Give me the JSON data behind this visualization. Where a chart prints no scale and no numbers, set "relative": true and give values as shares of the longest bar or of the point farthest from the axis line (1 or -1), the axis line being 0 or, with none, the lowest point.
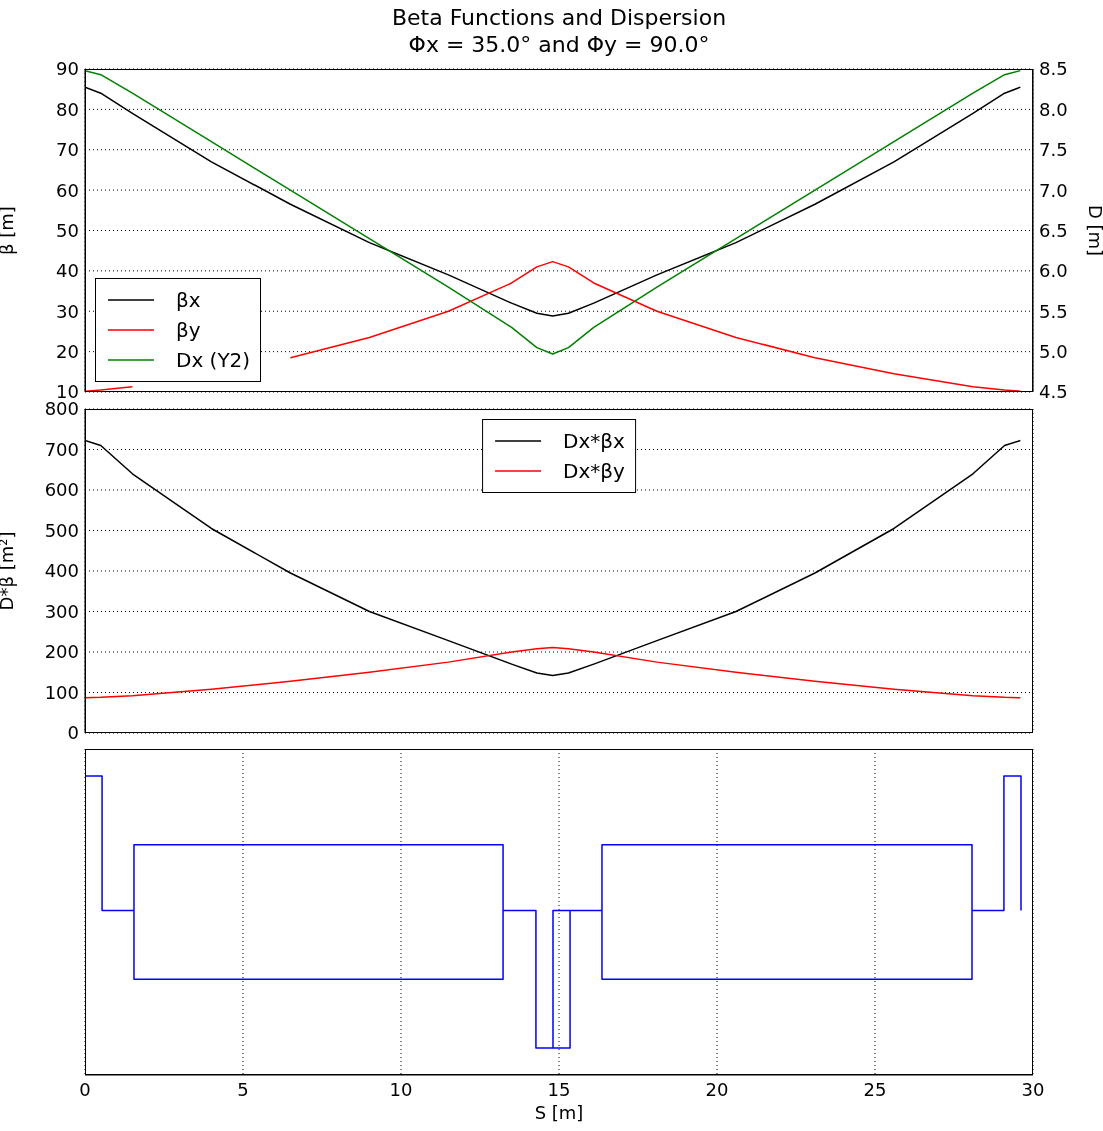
{
  "chart_data": [
    {
      "type": "line",
      "title": "Beta Functions and Dispersion",
      "subtitle": "Φx = 35.0° and Φy = 90.0°",
      "ylabel": "β [m]",
      "y2label": "D [m]",
      "x": [
        0,
        0.5,
        1.5,
        4,
        6.5,
        9,
        11.5,
        13.5,
        14.3,
        14.8,
        15.3,
        16.1,
        18.1,
        20.6,
        23.1,
        25.6,
        28.1,
        29.1,
        29.6
      ],
      "series": [
        {
          "name": "βx",
          "color": "#000000",
          "values": [
            85.5,
            84,
            79,
            67,
            56.5,
            47,
            39,
            32,
            29.5,
            28.8,
            29.5,
            32,
            39,
            47,
            56.5,
            67,
            79,
            84,
            85.5
          ]
        },
        {
          "name": "βy",
          "color": "#ff0000",
          "values": [
            10.2,
            10.5,
            11.3,
            null,
            18.5,
            23.5,
            30,
            37,
            41,
            42.3,
            41,
            37,
            30,
            23.5,
            18.5,
            14.5,
            11.3,
            10.5,
            10.2
          ]
        },
        {
          "name": "Dx (Y2)",
          "color": "#008000",
          "axis": "y2",
          "values": [
            8.48,
            8.43,
            8.2,
            7.6,
            7.0,
            6.4,
            5.8,
            5.3,
            5.05,
            4.97,
            5.05,
            5.3,
            5.8,
            6.4,
            7.0,
            7.6,
            8.2,
            8.43,
            8.48
          ]
        }
      ],
      "xlim": [
        0,
        30
      ],
      "xticks": [
        0,
        5,
        10,
        15,
        20,
        25,
        30
      ],
      "ylim": [
        10,
        90
      ],
      "yticks": [
        10,
        20,
        30,
        40,
        50,
        60,
        70,
        80,
        90
      ],
      "y2lim": [
        4.5,
        8.5
      ],
      "y2ticks": [
        {
          "value": 4.5,
          "label": "4.5"
        },
        {
          "value": 5,
          "label": "5.0"
        },
        {
          "value": 5.5,
          "label": "5.5"
        },
        {
          "value": 6,
          "label": "6.0"
        },
        {
          "value": 6.5,
          "label": "6.5"
        },
        {
          "value": 7,
          "label": "7.0"
        },
        {
          "value": 7.5,
          "label": "7.5"
        },
        {
          "value": 8,
          "label": "8.0"
        },
        {
          "value": 8.5,
          "label": "8.5"
        }
      ],
      "grid": true,
      "legend": "bottom left",
      "tick_labels": "y"
    },
    {
      "type": "line",
      "ylabel": "D*β [m²]",
      "x": [
        0,
        0.5,
        1.5,
        4,
        6.5,
        9,
        11.5,
        13.5,
        14.3,
        14.8,
        15.3,
        16.1,
        18.1,
        20.6,
        23.1,
        25.6,
        28.1,
        29.1,
        29.6
      ],
      "series": [
        {
          "name": "Dx*βx",
          "color": "#000000",
          "values": [
            722,
            710,
            640,
            505,
            395,
            300,
            228,
            170,
            148,
            142,
            148,
            170,
            228,
            300,
            395,
            505,
            640,
            710,
            722
          ]
        },
        {
          "name": "Dx*βy",
          "color": "#ff0000",
          "values": [
            87,
            88,
            92,
            108,
            128,
            150,
            175,
            200,
            208,
            211,
            208,
            200,
            175,
            150,
            128,
            108,
            92,
            88,
            87
          ]
        }
      ],
      "xlim": [
        0,
        30
      ],
      "xticks": [
        0,
        5,
        10,
        15,
        20,
        25,
        30
      ],
      "ylim": [
        0,
        800
      ],
      "yticks": [
        0,
        100,
        200,
        300,
        400,
        500,
        600,
        700,
        800
      ],
      "grid": true,
      "legend": "top",
      "tick_labels": "y"
    },
    {
      "type": "line",
      "xlabel": "S [m]",
      "relative": true,
      "series": [
        {
          "color": "#0000ff",
          "x": [
            0,
            0.54,
            0.54,
            1.55,
            1.55,
            13.23,
            13.23,
            1.55,
            1.55,
            13.23,
            13.23,
            14.27,
            14.27,
            14.81,
            14.81,
            15.35,
            15.35,
            14.81,
            14.81,
            15.35,
            16.36,
            16.36,
            28.07,
            28.07,
            16.36,
            16.36,
            28.07,
            28.07,
            29.08,
            29.08,
            29.62,
            29.62
          ],
          "values": [
            1,
            1,
            0.55,
            0.55,
            0.77,
            0.77,
            0.32,
            0.32,
            0.77,
            0.77,
            0.55,
            0.55,
            0.09,
            0.09,
            0.55,
            0.55,
            0.09,
            0.09,
            0.55,
            0.55,
            0.55,
            0.77,
            0.77,
            0.32,
            0.32,
            0.77,
            0.77,
            0.55,
            0.55,
            1,
            1,
            0.55
          ]
        }
      ],
      "xlim": [
        0,
        30
      ],
      "xticks": [
        0,
        5,
        10,
        15,
        20,
        25,
        30
      ],
      "grid": "x"
    }
  ]
}
